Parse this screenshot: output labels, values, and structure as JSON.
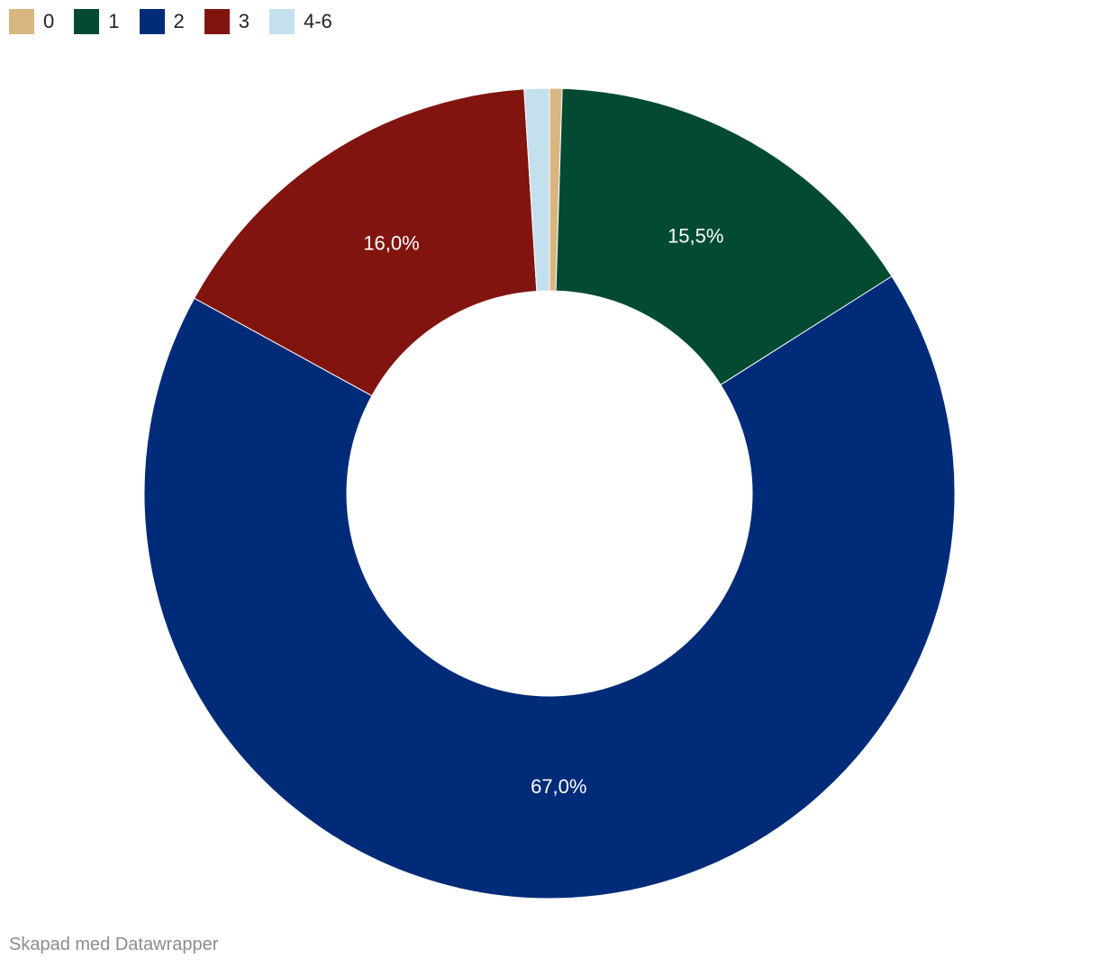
{
  "chart_data": {
    "type": "pie",
    "style": "donut",
    "categories": [
      "0",
      "1",
      "2",
      "3",
      "4-6"
    ],
    "values": [
      0.5,
      15.5,
      67.0,
      16.0,
      1.0
    ],
    "colors": [
      "#d8b67f",
      "#034a32",
      "#002b78",
      "#82140f",
      "#c4e0ee"
    ],
    "data_labels": [
      "",
      "15,5%",
      "67,0%",
      "16,0%",
      ""
    ],
    "legend_position": "top-left",
    "title": "",
    "xlabel": "",
    "ylabel": ""
  },
  "legend": {
    "items": [
      {
        "label": "0",
        "color": "#d8b67f"
      },
      {
        "label": "1",
        "color": "#034a32"
      },
      {
        "label": "2",
        "color": "#002b78"
      },
      {
        "label": "3",
        "color": "#82140f"
      },
      {
        "label": "4-6",
        "color": "#c4e0ee"
      }
    ]
  },
  "footer": {
    "credit": "Skapad med Datawrapper"
  }
}
